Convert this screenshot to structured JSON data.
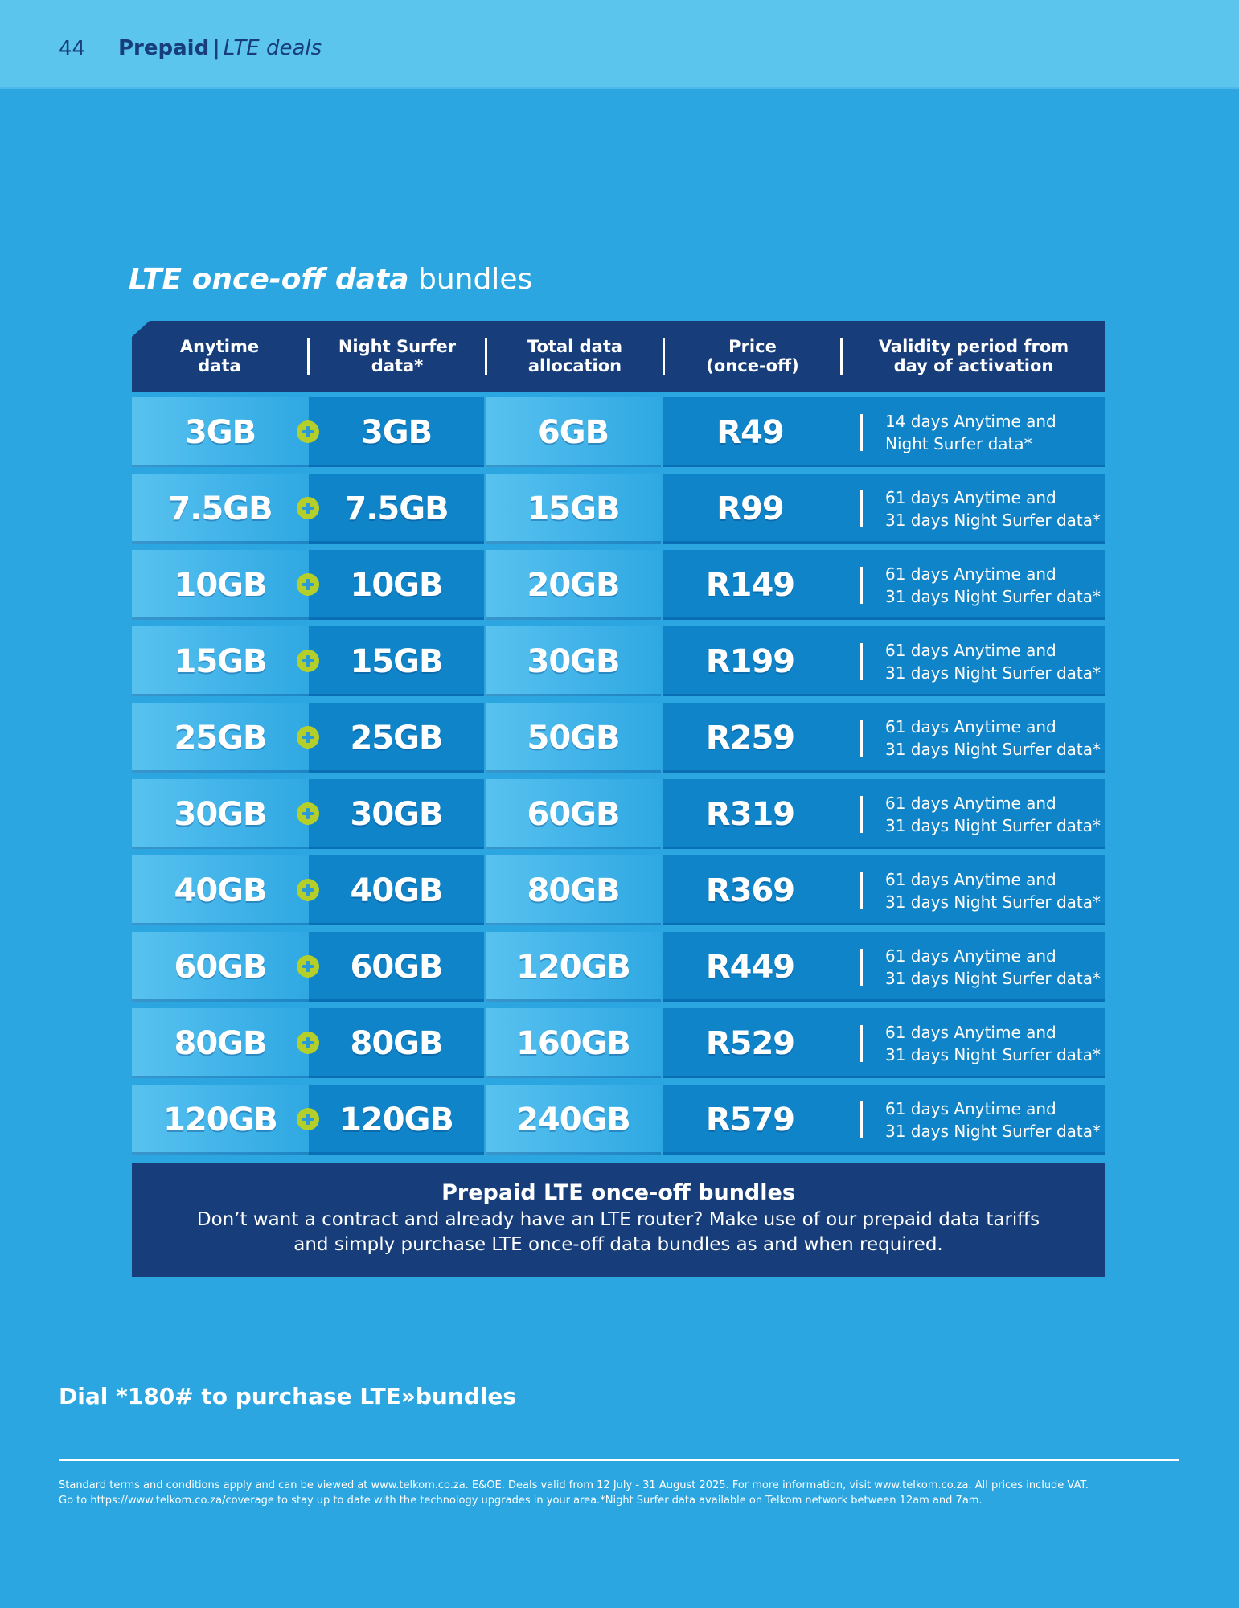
{
  "header": {
    "page_number": "44",
    "section": "Prepaid",
    "separator": "|",
    "subsection": "LTE deals"
  },
  "heading": {
    "emphasis": "LTE once-off data",
    "rest": " bundles"
  },
  "table": {
    "columns": [
      "Anytime\ndata",
      "Night Surfer\ndata*",
      "Total data\nallocation",
      "Price\n(once-off)",
      "Validity period from\nday of activation"
    ],
    "rows": [
      {
        "anytime": "3GB",
        "night": "3GB",
        "total": "6GB",
        "price": "R49",
        "validity": "14 days Anytime and\nNight Surfer data*"
      },
      {
        "anytime": "7.5GB",
        "night": "7.5GB",
        "total": "15GB",
        "price": "R99",
        "validity": "61 days Anytime and\n31 days Night Surfer data*"
      },
      {
        "anytime": "10GB",
        "night": "10GB",
        "total": "20GB",
        "price": "R149",
        "validity": "61 days Anytime and\n31 days Night Surfer data*"
      },
      {
        "anytime": "15GB",
        "night": "15GB",
        "total": "30GB",
        "price": "R199",
        "validity": "61 days Anytime and\n31 days Night Surfer data*"
      },
      {
        "anytime": "25GB",
        "night": "25GB",
        "total": "50GB",
        "price": "R259",
        "validity": "61 days Anytime and\n31 days Night Surfer data*"
      },
      {
        "anytime": "30GB",
        "night": "30GB",
        "total": "60GB",
        "price": "R319",
        "validity": "61 days Anytime and\n31 days Night Surfer data*"
      },
      {
        "anytime": "40GB",
        "night": "40GB",
        "total": "80GB",
        "price": "R369",
        "validity": "61 days Anytime and\n31 days Night Surfer data*"
      },
      {
        "anytime": "60GB",
        "night": "60GB",
        "total": "120GB",
        "price": "R449",
        "validity": "61 days Anytime and\n31 days Night Surfer data*"
      },
      {
        "anytime": "80GB",
        "night": "80GB",
        "total": "160GB",
        "price": "R529",
        "validity": "61 days Anytime and\n31 days Night Surfer data*"
      },
      {
        "anytime": "120GB",
        "night": "120GB",
        "total": "240GB",
        "price": "R579",
        "validity": "61 days Anytime and\n31 days Night Surfer data*"
      }
    ],
    "plus_icon": "plus-icon"
  },
  "info_box": {
    "title": "Prepaid LTE once-off bundles",
    "body": "Don’t want a contract and already have an LTE router? Make use of our prepaid data tariffs\nand simply purchase LTE once-off data bundles as and when required."
  },
  "dial": {
    "text": "Dial *180# to purchase LTE»bundles"
  },
  "footer": {
    "text": "Standard terms and conditions apply and can be viewed at www.telkom.co.za. E&OE. Deals valid from 12 July - 31 August 2025. For more information, visit www.telkom.co.za. All prices include VAT.\nGo to https://www.telkom.co.za/coverage to stay up to date with the technology upgrades in your area.*Night Surfer data available on Telkom network between 12am and 7am."
  },
  "colors": {
    "background": "#2ba6e0",
    "top_band": "#5bc5ee",
    "navy": "#173e7a",
    "cell_dark": "#0f84c8",
    "cell_light": "#58c2ef",
    "plus_green": "#b4cf2a"
  }
}
